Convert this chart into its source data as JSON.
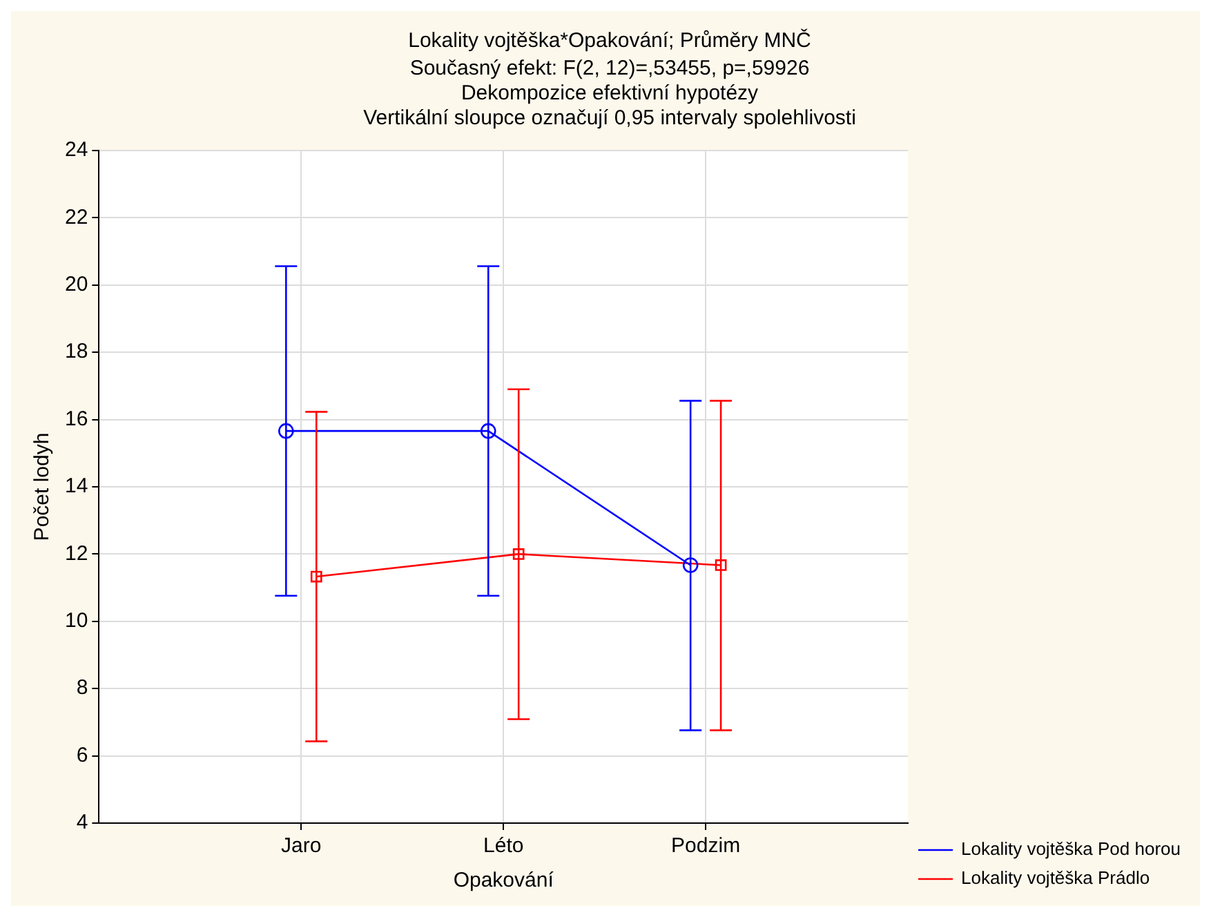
{
  "chart_data": {
    "type": "line",
    "title": "Lokality vojtěška*Opakování; Průměry MNČ",
    "subtitle": "Současný efekt: F(2, 12)=,53455, p=,59926",
    "annotations": [
      "Dekompozice efektivní hypotézy",
      "Vertikální sloupce označují 0,95 intervaly spolehlivosti"
    ],
    "xlabel": "Opakování",
    "ylabel": "Počet lodyh",
    "categories": [
      "Jaro",
      "Léto",
      "Podzim"
    ],
    "series": [
      {
        "name": "Lokality vojtěška Pod horou",
        "color": "#0000ff",
        "marker": "circle",
        "values": [
          15.66,
          15.66,
          11.67
        ],
        "errors": [
          [
            10.76,
            20.56
          ],
          [
            10.76,
            20.56
          ],
          [
            6.76,
            16.56
          ]
        ]
      },
      {
        "name": "Lokality vojtěška Prádlo",
        "color": "#ff0000",
        "marker": "square",
        "values": [
          11.33,
          12.0,
          11.67
        ],
        "errors": [
          [
            6.43,
            16.23
          ],
          [
            7.09,
            16.9
          ],
          [
            6.76,
            16.56
          ]
        ]
      }
    ],
    "ylim": [
      4,
      24
    ],
    "yticks": [
      4,
      6,
      8,
      10,
      12,
      14,
      16,
      18,
      20,
      22,
      24
    ],
    "grid": true,
    "legend": "bottom right",
    "line_style": "solid"
  }
}
